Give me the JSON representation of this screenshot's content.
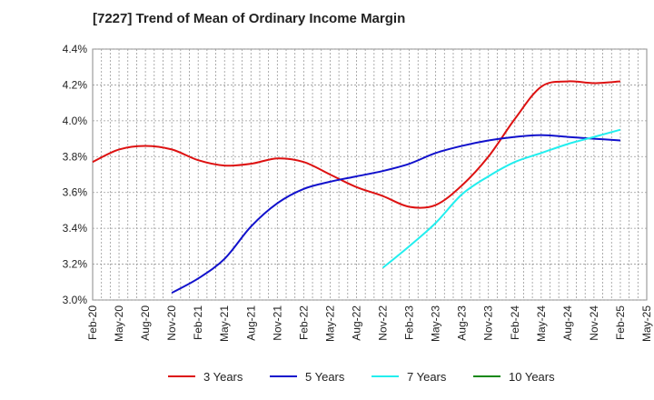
{
  "chart_data": {
    "type": "line",
    "title": "[7227]  Trend of Mean of Ordinary Income Margin",
    "xlabel": "",
    "ylabel": "",
    "x_ticks": [
      "Feb-20",
      "May-20",
      "Aug-20",
      "Nov-20",
      "Feb-21",
      "May-21",
      "Aug-21",
      "Nov-21",
      "Feb-22",
      "May-22",
      "Aug-22",
      "Nov-22",
      "Feb-23",
      "May-23",
      "Aug-23",
      "Nov-23",
      "Feb-24",
      "May-24",
      "Aug-24",
      "Nov-24",
      "Feb-25",
      "May-25"
    ],
    "y_ticks": [
      "3.0%",
      "3.2%",
      "3.4%",
      "3.6%",
      "3.8%",
      "4.0%",
      "4.2%",
      "4.4%"
    ],
    "ylim": [
      3.0,
      4.4
    ],
    "grid": true,
    "legend_position": "bottom",
    "series": [
      {
        "name": "3 Years",
        "color": "#dd1111",
        "x": [
          "Feb-20",
          "May-20",
          "Aug-20",
          "Nov-20",
          "Feb-21",
          "May-21",
          "Aug-21",
          "Nov-21",
          "Feb-22",
          "May-22",
          "Aug-22",
          "Nov-22",
          "Feb-23",
          "May-23",
          "Aug-23",
          "Nov-23",
          "Feb-24",
          "May-24",
          "Aug-24",
          "Nov-24",
          "Feb-25"
        ],
        "values": [
          3.77,
          3.84,
          3.86,
          3.84,
          3.78,
          3.75,
          3.76,
          3.79,
          3.77,
          3.7,
          3.63,
          3.58,
          3.52,
          3.53,
          3.64,
          3.8,
          4.01,
          4.19,
          4.22,
          4.21,
          4.22
        ]
      },
      {
        "name": "5 Years",
        "color": "#1111cc",
        "x": [
          "Nov-20",
          "Feb-21",
          "May-21",
          "Aug-21",
          "Nov-21",
          "Feb-22",
          "May-22",
          "Aug-22",
          "Nov-22",
          "Feb-23",
          "May-23",
          "Aug-23",
          "Nov-23",
          "Feb-24",
          "May-24",
          "Aug-24",
          "Nov-24",
          "Feb-25"
        ],
        "values": [
          3.04,
          3.12,
          3.23,
          3.41,
          3.54,
          3.62,
          3.66,
          3.69,
          3.72,
          3.76,
          3.82,
          3.86,
          3.89,
          3.91,
          3.92,
          3.91,
          3.9,
          3.89
        ]
      },
      {
        "name": "7 Years",
        "color": "#22eeee",
        "x": [
          "Nov-22",
          "Feb-23",
          "May-23",
          "Aug-23",
          "Nov-23",
          "Feb-24",
          "May-24",
          "Aug-24",
          "Nov-24",
          "Feb-25"
        ],
        "values": [
          3.18,
          3.3,
          3.43,
          3.59,
          3.69,
          3.77,
          3.82,
          3.87,
          3.91,
          3.95
        ]
      },
      {
        "name": "10 Years",
        "color": "#118811",
        "x": [],
        "values": []
      }
    ]
  }
}
